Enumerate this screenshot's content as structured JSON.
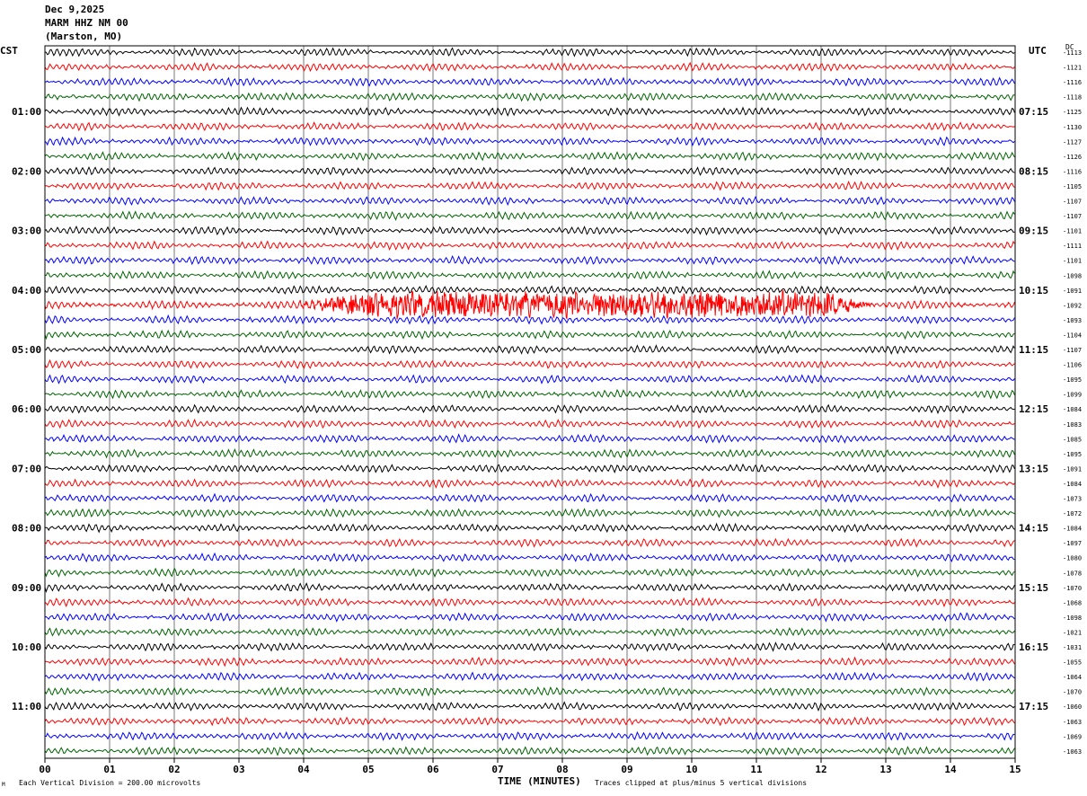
{
  "header": {
    "date": "Dec 9,2025",
    "station": "MARM HHZ NM 00",
    "location": "(Marston, MO)"
  },
  "labels": {
    "left_tz": "CST",
    "right_tz": "UTC",
    "dc": "DC",
    "xlabel": "TIME (MINUTES)",
    "scale_note": "Each Vertical Division =  200.00 microvolts",
    "clip_note": "Traces clipped at plus/minus 5 vertical divisions",
    "corner_mark": "M"
  },
  "colors": {
    "cycle": [
      "#000000",
      "#ff0000",
      "#0000ff",
      "#006400"
    ],
    "grid": "#555555",
    "background": "#ffffff"
  },
  "chart_data": {
    "type": "line",
    "title": "",
    "xlabel": "TIME (MINUTES)",
    "x_ticks": [
      "00",
      "01",
      "02",
      "03",
      "04",
      "05",
      "06",
      "07",
      "08",
      "09",
      "10",
      "11",
      "12",
      "13",
      "14",
      "15"
    ],
    "xlim": [
      0,
      15
    ],
    "trace_minutes": 15,
    "hour_labels_left": [
      "01:00",
      "02:00",
      "03:00",
      "04:00",
      "05:00",
      "06:00",
      "07:00",
      "08:00",
      "09:00",
      "10:00",
      "11:00"
    ],
    "hour_labels_right": [
      "07:15",
      "08:15",
      "09:15",
      "10:15",
      "11:15",
      "12:15",
      "13:15",
      "14:15",
      "15:15",
      "16:15",
      "17:15"
    ],
    "dc_offsets": [
      -1113,
      -1121,
      -1116,
      -1118,
      -1125,
      -1130,
      -1127,
      -1126,
      -1116,
      -1105,
      -1107,
      -1107,
      -1101,
      -1111,
      -1101,
      -1098,
      -1091,
      -1092,
      -1093,
      -1104,
      -1107,
      -1106,
      -1095,
      -1099,
      -1084,
      -1083,
      -1085,
      -1095,
      -1091,
      -1084,
      -1073,
      -1072,
      -1084,
      -1097,
      -1080,
      -1078,
      -1070,
      -1068,
      -1098,
      -1021,
      -1031,
      -1055,
      -1064,
      -1070,
      -1060,
      -1063,
      -1069,
      -1063
    ],
    "noisy_trace": {
      "row": 17,
      "from_min": 3.8,
      "to_min": 12.9,
      "amplitude_divisions": 0.9
    }
  }
}
